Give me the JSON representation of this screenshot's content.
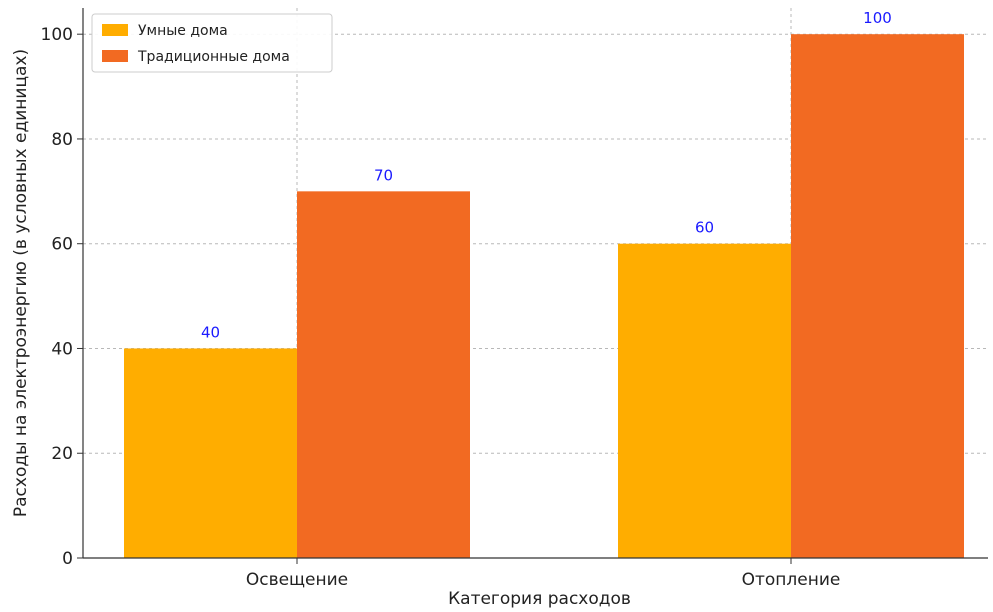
{
  "chart_data": {
    "type": "bar",
    "title": "",
    "xlabel": "Категория расходов",
    "ylabel": "Расходы на электроэнергию (в условных единицах)",
    "categories": [
      "Освещение",
      "Отопление"
    ],
    "series": [
      {
        "name": "Умные дома",
        "values": [
          40,
          60
        ],
        "color": "#FFAD00"
      },
      {
        "name": "Традиционные дома",
        "values": [
          70,
          100
        ],
        "color": "#F26A22"
      }
    ],
    "ylim": [
      0,
      105
    ],
    "yticks": [
      0,
      20,
      40,
      60,
      80,
      100
    ],
    "grid": true,
    "legend_position": "top-left",
    "data_label_color": "#1a1aff"
  }
}
